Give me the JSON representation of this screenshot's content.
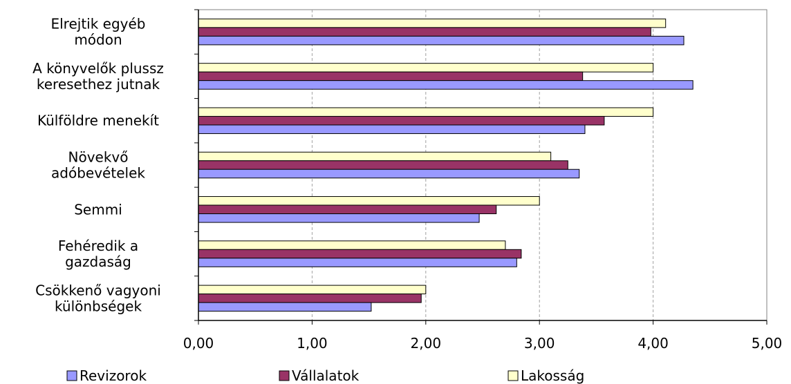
{
  "chart_data": {
    "type": "bar",
    "orientation": "horizontal",
    "categories": [
      [
        "Elrejtik egyéb",
        "módon"
      ],
      [
        "A könyvelők plussz",
        "keresethez jutnak"
      ],
      [
        "Külföldre menekít"
      ],
      [
        "Növekvő",
        "adóbevételek"
      ],
      [
        "Semmi"
      ],
      [
        "Fehéredik a",
        "gazdaság"
      ],
      [
        "Csökkenő vagyoni",
        "különbségek"
      ]
    ],
    "series": [
      {
        "name": "Revizorok",
        "color": "#9999ff",
        "values": [
          4.27,
          4.35,
          3.4,
          3.35,
          2.47,
          2.8,
          1.52
        ]
      },
      {
        "name": "Vállalatok",
        "color": "#993366",
        "values": [
          3.98,
          3.38,
          3.57,
          3.25,
          2.62,
          2.84,
          1.96
        ]
      },
      {
        "name": "Lakosság",
        "color": "#ffffcc",
        "values": [
          4.11,
          4.0,
          4.0,
          3.1,
          3.0,
          2.7,
          2.0
        ]
      }
    ],
    "xlim": [
      0,
      5
    ],
    "xticks": [
      "0,00",
      "1,00",
      "2,00",
      "3,00",
      "4,00",
      "5,00"
    ],
    "grid": "vertical dashed",
    "legend": "bottom",
    "title": "",
    "xlabel": "",
    "ylabel": ""
  }
}
